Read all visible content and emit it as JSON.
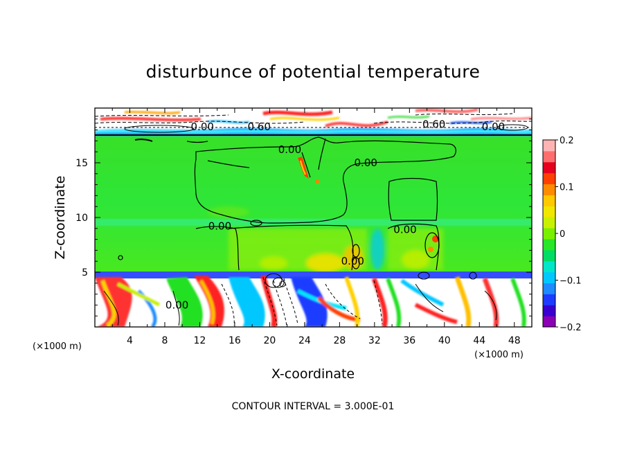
{
  "chart_data": {
    "type": "heatmap",
    "title": "disturbunce of potential temperature",
    "xlabel": "X-coordinate",
    "ylabel": "Z-coordinate",
    "x_unit": "(×1000 m)",
    "y_unit": "(×1000 m)",
    "xlim": [
      0,
      50
    ],
    "ylim": [
      0,
      20
    ],
    "x_ticks": [
      "4",
      "8",
      "12",
      "16",
      "20",
      "24",
      "28",
      "32",
      "36",
      "40",
      "44",
      "48"
    ],
    "x_tick_values": [
      4,
      8,
      12,
      16,
      20,
      24,
      28,
      32,
      36,
      40,
      44,
      48
    ],
    "y_ticks": [
      "5",
      "10",
      "15"
    ],
    "y_tick_values": [
      5,
      10,
      15
    ],
    "colorbar": {
      "min": -0.2,
      "max": 0.2,
      "tick_labels": [
        "0.2",
        "0.1",
        "0",
        "−0.1",
        "−0.2"
      ],
      "tick_values": [
        0.2,
        0.1,
        0,
        -0.1,
        -0.2
      ],
      "colors": [
        "#8b00b5",
        "#3a00d0",
        "#1e3cff",
        "#1e8cff",
        "#00c8ff",
        "#00e6c8",
        "#00dc64",
        "#28e628",
        "#78f000",
        "#c8f000",
        "#f0e600",
        "#ffc800",
        "#ff8c00",
        "#ff4000",
        "#e6001e",
        "#ff6e6e",
        "#ffb4b4"
      ]
    },
    "contour_labels": [
      {
        "text": "0.00",
        "x": 12.3,
        "z": 18.3
      },
      {
        "text": "0.60",
        "x": 18.8,
        "z": 18.3
      },
      {
        "text": "0.60",
        "x": 38.8,
        "z": 18.5
      },
      {
        "text": "0.00",
        "x": 45.6,
        "z": 18.3
      },
      {
        "text": "0.00",
        "x": 22.3,
        "z": 16.2
      },
      {
        "text": "0.00",
        "x": 31.0,
        "z": 15.0
      },
      {
        "text": "0.00",
        "x": 14.3,
        "z": 9.2
      },
      {
        "text": "0.00",
        "x": 35.5,
        "z": 8.9
      },
      {
        "text": "0.00",
        "x": 29.5,
        "z": 6.0
      },
      {
        "text": "0.00",
        "x": 9.4,
        "z": 2.0
      }
    ],
    "contour_interval_label": "CONTOUR INTERVAL =",
    "contour_interval": "3.000E-01"
  }
}
